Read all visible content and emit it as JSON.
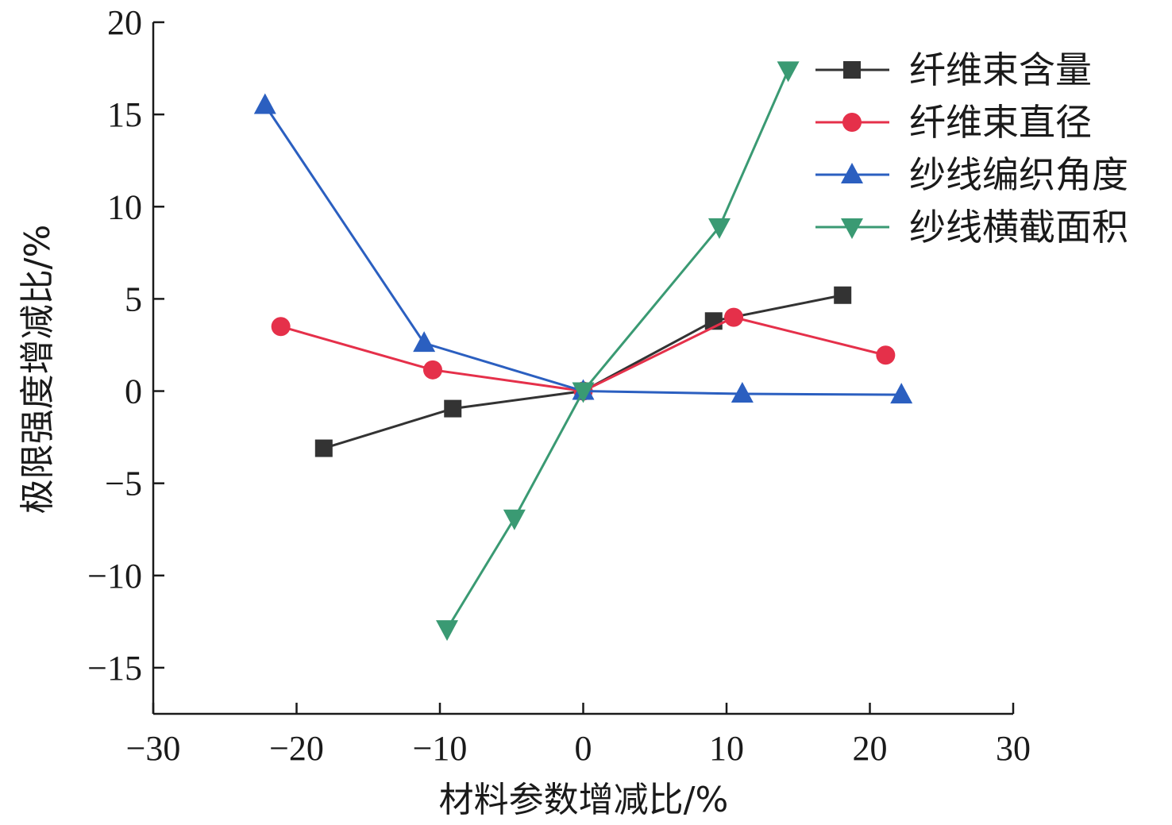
{
  "chart_data": {
    "type": "line",
    "xlabel": "材料参数增减比/%",
    "ylabel": "极限强度增减比/%",
    "xlim": [
      -30,
      30
    ],
    "ylim": [
      -17.5,
      20
    ],
    "xticks": [
      -30,
      -20,
      -10,
      0,
      10,
      20,
      30
    ],
    "yticks": [
      20,
      15,
      10,
      5,
      0,
      -5,
      -10,
      -15
    ],
    "x_tick_labels": [
      "−30",
      "−20",
      "−10",
      "0",
      "10",
      "20",
      "30"
    ],
    "y_tick_labels": [
      "20",
      "15",
      "10",
      "5",
      "0",
      "−5",
      "−10",
      "−15"
    ],
    "legend_position": "top-right",
    "grid": false,
    "series": [
      {
        "name": "纤维束含量",
        "color": "#333333",
        "marker": "square",
        "x": [
          -18.1,
          -9.1,
          0,
          9.1,
          18.1
        ],
        "y": [
          -3.1,
          -0.95,
          0,
          3.8,
          5.2
        ]
      },
      {
        "name": "纤维束直径",
        "color": "#e5304a",
        "marker": "circle",
        "x": [
          -21.1,
          -10.5,
          0,
          10.5,
          21.1
        ],
        "y": [
          3.5,
          1.15,
          0,
          4.0,
          1.95
        ]
      },
      {
        "name": "纱线编织角度",
        "color": "#2b5fc0",
        "marker": "triangle-up",
        "x": [
          -22.2,
          -11.1,
          0,
          11.1,
          22.2
        ],
        "y": [
          15.5,
          2.6,
          0,
          -0.15,
          -0.2
        ]
      },
      {
        "name": "纱线横截面积",
        "color": "#3a9a73",
        "marker": "triangle-down",
        "x": [
          -9.5,
          -4.8,
          0,
          9.5,
          14.3
        ],
        "y": [
          -12.9,
          -6.9,
          0,
          8.9,
          17.4
        ]
      }
    ]
  }
}
